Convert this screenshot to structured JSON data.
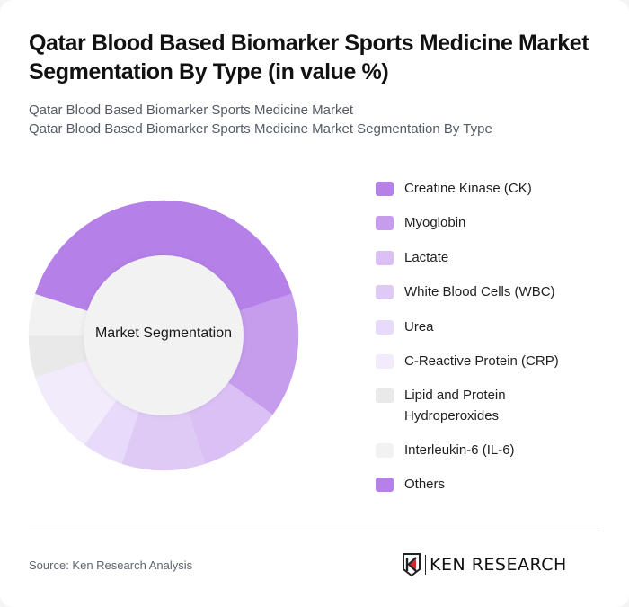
{
  "header": {
    "title": "Qatar Blood Based Biomarker Sports Medicine Market Segmentation By Type (in value %)",
    "subtitle_line1": "Qatar Blood Based Biomarker Sports Medicine Market",
    "subtitle_line2": "Qatar Blood Based Biomarker Sports Medicine Market Segmentation By Type"
  },
  "donut": {
    "center_label": "Market Segmentation"
  },
  "footer": {
    "source": "Source: Ken Research Analysis",
    "logo_text": "KEN RESEARCH",
    "logo_icon": "ken-research-k-shield-icon"
  },
  "legend": [
    {
      "label": "Creatine Kinase (CK)",
      "color": "#b581e9"
    },
    {
      "label": "Myoglobin",
      "color": "#c69ced"
    },
    {
      "label": "Lactate",
      "color": "#dbc0f5"
    },
    {
      "label": "White Blood Cells (WBC)",
      "color": "#dfcaf6"
    },
    {
      "label": "Urea",
      "color": "#e8dafa"
    },
    {
      "label": "C-Reactive Protein (CRP)",
      "color": "#f2ebfc"
    },
    {
      "label": "Lipid and Protein Hydroperoxides",
      "color": "#e9e9e9"
    },
    {
      "label": "Interleukin-6 (IL-6)",
      "color": "#f2f2f2"
    },
    {
      "label": "Others",
      "color": "#b581e9"
    }
  ],
  "chart_data": {
    "type": "pie",
    "subtype": "donut",
    "title": "Qatar Blood Based Biomarker Sports Medicine Market Segmentation By Type (in value %)",
    "center_label": "Market Segmentation",
    "legend_position": "right",
    "categories": [
      "Creatine Kinase (CK)",
      "Myoglobin",
      "Lactate",
      "White Blood Cells (WBC)",
      "Urea",
      "C-Reactive Protein (CRP)",
      "Lipid and Protein Hydroperoxides",
      "Interleukin-6 (IL-6)",
      "Others"
    ],
    "values": [
      20,
      15,
      10,
      10,
      5,
      10,
      5,
      5,
      20
    ],
    "unit": "%",
    "colors": [
      "#b581e9",
      "#c69ced",
      "#dbc0f5",
      "#dfcaf6",
      "#e8dafa",
      "#f2ebfc",
      "#e9e9e9",
      "#f2f2f2",
      "#b581e9"
    ],
    "start_angle_deg": 0,
    "direction": "clockwise"
  }
}
